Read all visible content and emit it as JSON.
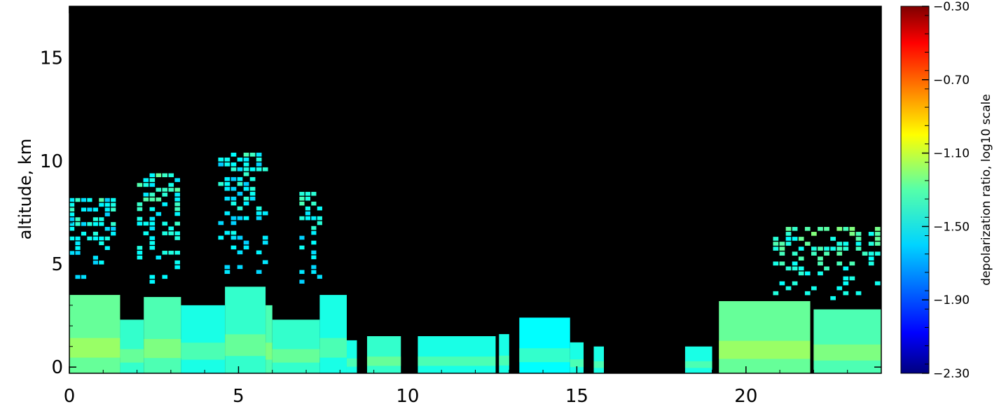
{
  "chart_data": {
    "type": "heatmap",
    "title": "",
    "xlabel": "",
    "ylabel": "altitude, km",
    "xlim": [
      0,
      24
    ],
    "ylim": [
      -0.3,
      17.5
    ],
    "x_ticks": [
      0,
      5,
      10,
      15,
      20
    ],
    "y_ticks": [
      0,
      5,
      10,
      15
    ],
    "x_tick_labels": [
      "0",
      "5",
      "10",
      "15",
      "20"
    ],
    "y_tick_labels": [
      "0",
      "5",
      "10",
      "15"
    ],
    "background_color": "#000000",
    "colorbar": {
      "label": "depolarization ratio, log10 scale",
      "range": [
        -2.3,
        -0.3
      ],
      "ticks": [
        -0.3,
        -0.7,
        -1.1,
        -1.5,
        -1.9,
        -2.3
      ],
      "tick_labels": [
        "−0.30",
        "−0.70",
        "−1.10",
        "−1.50",
        "−1.90",
        "−2.30"
      ],
      "colormap": "jet"
    },
    "regions": [
      {
        "x": [
          0.0,
          1.5
        ],
        "top": 3.5,
        "value": -1.35
      },
      {
        "x": [
          1.5,
          2.2
        ],
        "top": 2.3,
        "value": -1.45
      },
      {
        "x": [
          2.2,
          3.3
        ],
        "top": 3.4,
        "value": -1.4
      },
      {
        "x": [
          3.3,
          4.6
        ],
        "top": 3.0,
        "value": -1.5
      },
      {
        "x": [
          4.6,
          5.8
        ],
        "top": 3.9,
        "value": -1.45
      },
      {
        "x": [
          5.8,
          6.0
        ],
        "top": 3.0,
        "value": -1.4
      },
      {
        "x": [
          6.0,
          7.4
        ],
        "top": 2.3,
        "value": -1.45
      },
      {
        "x": [
          7.4,
          8.2
        ],
        "top": 3.5,
        "value": -1.5
      },
      {
        "x": [
          8.2,
          8.5
        ],
        "top": 1.3,
        "value": -1.5
      },
      {
        "x": [
          8.8,
          9.8
        ],
        "top": 1.5,
        "value": -1.45
      },
      {
        "x": [
          10.3,
          12.6
        ],
        "top": 1.5,
        "value": -1.5
      },
      {
        "x": [
          12.7,
          13.0
        ],
        "top": 1.6,
        "value": -1.5
      },
      {
        "x": [
          13.3,
          14.8
        ],
        "top": 2.4,
        "value": -1.55
      },
      {
        "x": [
          14.8,
          15.2
        ],
        "top": 1.2,
        "value": -1.5
      },
      {
        "x": [
          15.5,
          15.8
        ],
        "top": 1.0,
        "value": -1.5
      },
      {
        "x": [
          18.2,
          19.0
        ],
        "top": 1.0,
        "value": -1.5
      },
      {
        "x": [
          19.2,
          21.9
        ],
        "top": 3.2,
        "value": -1.35
      },
      {
        "x": [
          22.0,
          24.0
        ],
        "top": 2.8,
        "value": -1.4
      }
    ],
    "cloud_patches": [
      {
        "x": [
          0.0,
          1.4
        ],
        "y": [
          4.0,
          8.2
        ],
        "value": -1.5
      },
      {
        "x": [
          2.0,
          3.3
        ],
        "y": [
          4.0,
          9.4
        ],
        "value": -1.45
      },
      {
        "x": [
          4.4,
          5.9
        ],
        "y": [
          4.0,
          10.4
        ],
        "value": -1.5
      },
      {
        "x": [
          6.8,
          7.5
        ],
        "y": [
          4.0,
          8.5
        ],
        "value": -1.5
      },
      {
        "x": [
          20.8,
          24.0
        ],
        "y": [
          3.2,
          6.8
        ],
        "value": -1.4
      }
    ]
  }
}
